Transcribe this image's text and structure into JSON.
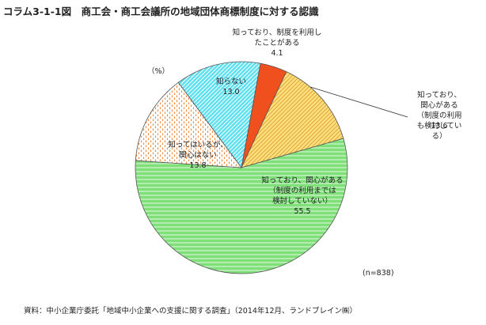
{
  "chart_data": {
    "type": "pie",
    "title": "コラム3-1-1図　商工会・商工会議所の地域団体商標制度に対する認識",
    "unit_label": "（%）",
    "note": "(n=838)",
    "source": "資料：中小企業庁委託「地域中小企業への支援に関する調査」（2014年12月、ランドブレイン㈱）",
    "categories": [
      "知っており、制度を利用し\nたことがある",
      "知っており、関心がある\n（制度の利用も検討してい\nる）",
      "知っており、関心がある\n（制度の利用までは\n検討していない）",
      "知ってはいるが、\n関心はない",
      "知らない"
    ],
    "values": [
      4.1,
      13.6,
      55.5,
      13.8,
      13.0
    ],
    "value_labels": [
      "4.1",
      "13.6",
      "55.5",
      "13.8",
      "13.0"
    ],
    "colors": [
      "#f0501e",
      "#ffe27a",
      "#7fe07a",
      "#f08a3c",
      "#5ee0f0"
    ],
    "patterns": [
      "solid",
      "diagonal",
      "horizontal",
      "dots",
      "diagonal"
    ]
  }
}
